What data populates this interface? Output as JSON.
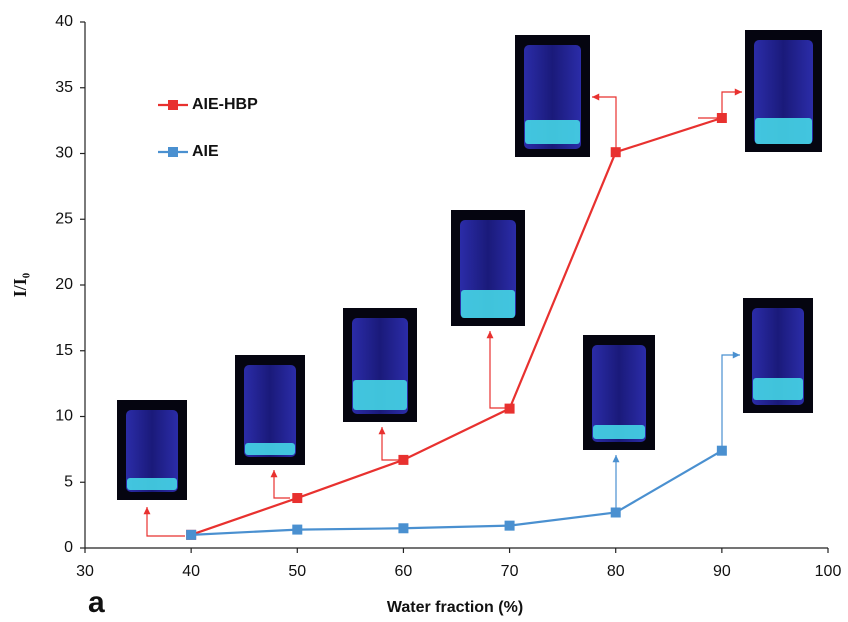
{
  "chart_data": {
    "type": "line",
    "x_label": "Water fraction (%)",
    "y_label": "I/I₀",
    "panel_label": "a",
    "x": [
      40,
      50,
      60,
      70,
      80,
      90
    ],
    "series": [
      {
        "name": "AIE-HBP",
        "color": "#e8312f",
        "values": [
          1.0,
          3.8,
          6.7,
          10.6,
          30.1,
          32.7
        ]
      },
      {
        "name": "AIE",
        "color": "#4a90d0",
        "values": [
          1.0,
          1.4,
          1.5,
          1.7,
          2.7,
          7.4
        ]
      }
    ],
    "xlim": [
      30,
      100
    ],
    "xticks": [
      30,
      40,
      50,
      60,
      70,
      80,
      90,
      100
    ],
    "ylim": [
      0,
      40
    ],
    "yticks": [
      0,
      5,
      10,
      15,
      20,
      25,
      30,
      35,
      40
    ],
    "grid": false,
    "legend": "upper-left"
  }
}
